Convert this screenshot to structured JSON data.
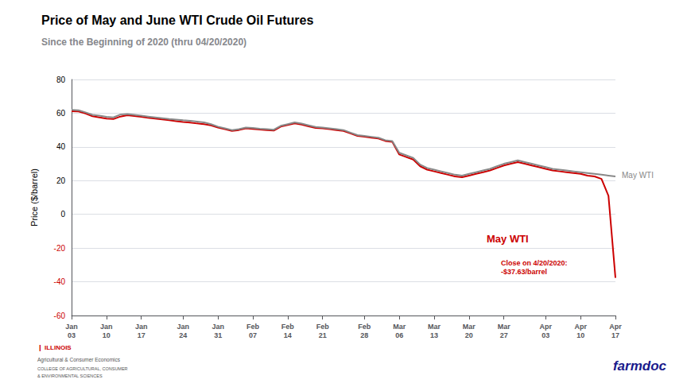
{
  "chart_data": {
    "type": "line",
    "title": "Price of May and June WTI Crude Oil Futures",
    "subtitle": "Since the Beginning of 2020 (thru 04/20/2020)",
    "ylabel": "Price ($/barrel)",
    "ylim": [
      -60,
      80
    ],
    "yticks": [
      -60,
      -40,
      -20,
      0,
      20,
      40,
      60,
      80
    ],
    "grid": true,
    "legend": false,
    "categories": [
      "Jan\n03",
      null,
      null,
      null,
      null,
      "Jan\n10",
      null,
      null,
      null,
      null,
      "Jan\n17",
      null,
      null,
      null,
      null,
      null,
      "Jan\n24",
      null,
      null,
      null,
      null,
      "Jan\n31",
      null,
      null,
      null,
      null,
      "Feb\n07",
      null,
      null,
      null,
      null,
      "Feb\n14",
      null,
      null,
      null,
      null,
      "Feb\n21",
      null,
      null,
      null,
      null,
      null,
      "Feb\n28",
      null,
      null,
      null,
      null,
      "Mar\n06",
      null,
      null,
      null,
      null,
      "Mar\n13",
      null,
      null,
      null,
      null,
      "Mar\n20",
      null,
      null,
      null,
      null,
      "Mar\n27",
      null,
      null,
      null,
      null,
      null,
      "Apr\n03",
      null,
      null,
      null,
      null,
      "Apr\n10",
      null,
      null,
      null,
      null,
      "Apr\n17"
    ],
    "series": [
      {
        "color": "#888888",
        "values": [
          62.0,
          61.7,
          60.5,
          59.0,
          58.5,
          57.8,
          57.5,
          59.2,
          59.5,
          59.0,
          58.5,
          58.0,
          57.5,
          57.0,
          56.5,
          56.2,
          55.8,
          55.5,
          55.0,
          54.5,
          53.5,
          52.0,
          51.0,
          50.0,
          50.5,
          51.5,
          51.2,
          50.8,
          50.5,
          50.2,
          52.5,
          53.5,
          54.5,
          53.8,
          52.8,
          51.8,
          51.5,
          51.0,
          50.5,
          50.0,
          48.5,
          47.0,
          46.5,
          46.0,
          45.5,
          44.0,
          43.5,
          36.5,
          35.0,
          33.5,
          29.5,
          27.5,
          26.5,
          25.5,
          24.5,
          23.5,
          23.0,
          24.0,
          25.0,
          26.0,
          27.0,
          28.5,
          30.0,
          31.0,
          32.0,
          31.0,
          30.0,
          29.0,
          28.0,
          27.0,
          26.5,
          26.0,
          25.5,
          25.0,
          24.5,
          24.0,
          23.5,
          23.0,
          22.5
        ]
      },
      {
        "color": "#cc0000",
        "values": [
          61.2,
          61.0,
          59.8,
          58.2,
          57.5,
          56.8,
          56.5,
          58.0,
          58.8,
          58.3,
          57.8,
          57.2,
          56.8,
          56.3,
          55.8,
          55.3,
          54.8,
          54.4,
          53.9,
          53.5,
          52.8,
          51.5,
          50.5,
          49.5,
          50.0,
          51.0,
          50.7,
          50.3,
          50.0,
          49.7,
          52.0,
          53.0,
          54.0,
          53.2,
          52.2,
          51.2,
          51.0,
          50.5,
          50.0,
          49.5,
          48.0,
          46.5,
          46.0,
          45.5,
          45.0,
          43.5,
          43.0,
          35.5,
          34.0,
          32.5,
          28.5,
          26.5,
          25.5,
          24.5,
          23.5,
          22.5,
          22.0,
          23.0,
          24.0,
          25.0,
          26.0,
          27.5,
          29.0,
          30.0,
          31.0,
          30.0,
          29.0,
          28.0,
          27.0,
          26.0,
          25.5,
          25.0,
          24.5,
          24.0,
          23.0,
          22.5,
          21.0,
          11.0,
          -37.63
        ]
      }
    ],
    "annotations": [
      {
        "text": "May WTI",
        "color": "#888888"
      },
      {
        "text": "May WTI",
        "color": "#cc0000"
      },
      {
        "text": "Close on 4/20/2020:\n-$37.63/barrel",
        "color": "#cc0000"
      },
      {
        "text": "❙ ILLINOIS",
        "color": "#cc0000"
      },
      {
        "text": "Agricultural & Consumer Economics"
      },
      {
        "text": "COLLEGE OF AGRICULTURAL, CONSUMER"
      },
      {
        "text": "& ENVIRONMENTAL SCIENCES"
      },
      {
        "text": "farmdoc",
        "color": "#1a1a8c"
      }
    ]
  }
}
